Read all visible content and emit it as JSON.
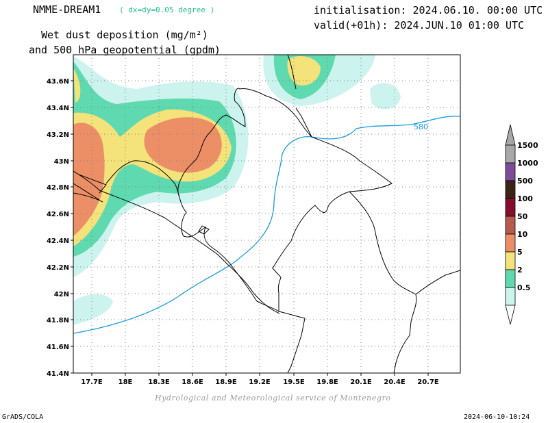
{
  "header": {
    "model_name": "NMME-DREAM1",
    "resolution": "( dx=dy=0.05 degree )",
    "title_line1": "Wet dust deposition (mg/m²)",
    "title_line2": "and 500 hPa geopotential (gpdm)",
    "init_line": "initialisation: 2024.06.10. 00:00 UTC",
    "valid_line": "valid(+01h): 2024.JUN.10 01:00 UTC"
  },
  "footer": {
    "credit": "Hydrological and Meteorological service of Montenegro",
    "software": "GrADS/COLA",
    "timestamp": "2024-06-10-10:24"
  },
  "map": {
    "lat_ticks": [
      "43.6N",
      "43.4N",
      "43.2N",
      "43N",
      "42.8N",
      "42.6N",
      "42.4N",
      "42.2N",
      "42N",
      "41.8N",
      "41.6N",
      "41.4N"
    ],
    "lon_ticks": [
      "17.7E",
      "18E",
      "18.3E",
      "18.6E",
      "18.9E",
      "19.2E",
      "19.5E",
      "19.8E",
      "20.1E",
      "20.4E",
      "20.7E"
    ],
    "lat_range": [
      41.4,
      43.75
    ],
    "lon_range": [
      17.5,
      20.95
    ],
    "grid": "dotted",
    "contour_label": "580",
    "contour_color": "#1a9be0",
    "border_color": "#000000"
  },
  "legend": {
    "levels": [
      "0.5",
      "2",
      "5",
      "10",
      "50",
      "100",
      "500",
      "1000",
      "1500"
    ],
    "colors": [
      "#cdf3ee",
      "#5fd9b0",
      "#f4e27a",
      "#ec8f66",
      "#b55a4c",
      "#860e2c",
      "#3b2417",
      "#7d4b99",
      "#a8a8a8"
    ]
  }
}
